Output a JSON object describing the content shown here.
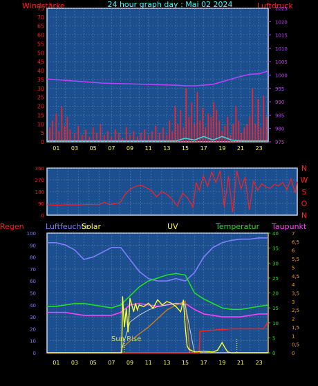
{
  "colors": {
    "bg": "#000000",
    "plot": "#1c4f8f",
    "grid": "#6f8fb8",
    "frame": "#c8d6ea",
    "wind": "#ff2020",
    "gust": "#ff2020",
    "wind_low": "#30e0e0",
    "pressure": "#c040ff",
    "direction": "#ff2020",
    "rain": "#ff2020",
    "humidity": "#8080ff",
    "solar": "#ffff30",
    "uv": "#d0d0d0",
    "temperature": "#20e020",
    "dewpoint": "#ff40ff",
    "solar_fill": "#c08020",
    "title": "#40ffff",
    "axis_x": "#ffff40"
  },
  "chart_data": [
    {
      "type": "line",
      "title": "24 hour graph day : Mai 02 2024",
      "left_label": "Windstärke",
      "right_label": "Luftdruck",
      "x_hours": [
        0,
        24
      ],
      "x_tick_labels": [
        "01",
        "03",
        "05",
        "07",
        "09",
        "11",
        "13",
        "15",
        "17",
        "19",
        "21",
        "23"
      ],
      "left_ticks": [
        "0",
        "5",
        "10",
        "15",
        "20",
        "25",
        "30",
        "35",
        "40",
        "45",
        "50",
        "55",
        "60",
        "65",
        "70",
        "75"
      ],
      "left_ylim": [
        0,
        75
      ],
      "right_ticks": [
        "975",
        "980",
        "985",
        "990",
        "995",
        "1000",
        "1005",
        "1010",
        "1015",
        "1020",
        "1025"
      ],
      "right_ylim": [
        975,
        1025
      ],
      "series": [
        {
          "key": "pressure",
          "axis": "right",
          "hours": [
            0,
            2,
            4,
            6,
            8,
            10,
            12,
            14,
            15,
            16,
            17,
            18,
            19,
            20,
            21,
            22,
            23,
            24
          ],
          "values": [
            998.5,
            998,
            997.5,
            997,
            996.8,
            996.6,
            996.4,
            996.2,
            996,
            996,
            996.2,
            996.5,
            997.5,
            998.5,
            999.5,
            1000.3,
            1000.5,
            1001.5
          ]
        },
        {
          "key": "gust",
          "axis": "left",
          "type": "bar",
          "hours": [
            0.3,
            0.6,
            1.0,
            1.3,
            1.6,
            1.9,
            2.2,
            2.5,
            3.0,
            3.4,
            3.8,
            4.2,
            4.6,
            5.0,
            5.4,
            5.8,
            6.2,
            6.6,
            7.0,
            7.4,
            7.8,
            8.2,
            8.6,
            9.0,
            9.4,
            9.8,
            10.2,
            10.6,
            11.0,
            11.4,
            11.8,
            12.2,
            12.6,
            13.0,
            13.3,
            13.6,
            13.9,
            14.2,
            14.5,
            14.8,
            15.1,
            15.4,
            15.7,
            16.0,
            16.3,
            16.6,
            16.9,
            17.2,
            17.5,
            17.8,
            18.1,
            18.4,
            18.7,
            19.0,
            19.3,
            19.6,
            19.9,
            20.2,
            20.5,
            20.8,
            21.1,
            21.4,
            21.7,
            22.0,
            22.3,
            22.6,
            22.9,
            23.2,
            23.5,
            23.8
          ],
          "values": [
            8,
            12,
            16,
            6,
            20,
            9,
            14,
            7,
            5,
            9,
            4,
            7,
            3,
            8,
            5,
            10,
            4,
            6,
            3,
            7,
            5,
            2,
            8,
            4,
            6,
            3,
            5,
            7,
            4,
            6,
            9,
            5,
            8,
            4,
            12,
            6,
            20,
            10,
            18,
            8,
            30,
            14,
            22,
            10,
            28,
            12,
            19,
            8,
            16,
            14,
            22,
            18,
            12,
            6,
            9,
            14,
            4,
            10,
            20,
            12,
            5,
            8,
            10,
            14,
            30,
            10,
            24,
            8,
            26,
            14
          ]
        },
        {
          "key": "wind_low",
          "axis": "left",
          "hours": [
            0,
            14,
            15,
            16,
            17,
            18,
            19,
            20,
            21,
            24
          ],
          "values": [
            0.5,
            0.5,
            2,
            1,
            3,
            1,
            3,
            1,
            0.5,
            0.5
          ]
        }
      ]
    },
    {
      "type": "line",
      "title": "",
      "right_label_letters": [
        "N",
        "W",
        "S",
        "O",
        "N"
      ],
      "left_ticks": [
        "0",
        "90",
        "180",
        "270",
        "360"
      ],
      "left_ylim": [
        0,
        360
      ],
      "series": [
        {
          "key": "direction",
          "hours": [
            0,
            1,
            2,
            3,
            4,
            5,
            5.5,
            6,
            7,
            7.5,
            8,
            8.5,
            9,
            9.5,
            10,
            10.5,
            11,
            11.5,
            12,
            12.5,
            13,
            13.5,
            14,
            14.3,
            14.6,
            15,
            15.4,
            15.8,
            16.2,
            16.6,
            17,
            17.4,
            17.8,
            18.2,
            18.6,
            19,
            19.4,
            19.8,
            20.2,
            20.6,
            21,
            21.4,
            21.8,
            22.2,
            22.6,
            23,
            23.4,
            23.8,
            24
          ],
          "values": [
            80,
            75,
            80,
            78,
            82,
            80,
            100,
            80,
            95,
            160,
            200,
            220,
            230,
            210,
            190,
            140,
            180,
            160,
            120,
            70,
            170,
            130,
            60,
            250,
            190,
            300,
            220,
            330,
            250,
            340,
            60,
            300,
            20,
            340,
            200,
            290,
            40,
            260,
            190,
            240,
            215,
            205,
            235,
            225,
            250,
            195,
            280,
            170,
            255
          ]
        }
      ]
    },
    {
      "type": "line",
      "labels": {
        "rain": "Regen",
        "humidity": "Luftfeuchte",
        "solar": "Solar",
        "uv": "UV",
        "temperature": "Temperatur",
        "dewpoint": "Taupunkt"
      },
      "annotation": "Sun Rise",
      "left_ticks": [
        "0",
        "10",
        "20",
        "30",
        "40",
        "50",
        "60",
        "70",
        "80",
        "90",
        "100"
      ],
      "left_ylim": [
        0,
        100
      ],
      "temp_ticks": [
        "0",
        "5",
        "10",
        "15",
        "20",
        "25",
        "30",
        "35",
        "40"
      ],
      "temp_ylim": [
        0,
        40
      ],
      "uv_ticks": [
        "0",
        "0,5",
        "1",
        "1,5",
        "2",
        "2,5",
        "3",
        "3,5",
        "4",
        "4,5",
        "5",
        "5,5",
        "6",
        "6,5",
        "7"
      ],
      "uv_ylim": [
        0,
        7
      ],
      "series": [
        {
          "key": "humidity",
          "axis": "left",
          "hours": [
            0,
            1,
            2,
            3,
            4,
            5,
            6,
            7,
            8,
            9,
            10,
            11,
            12,
            13,
            14,
            15,
            16,
            17,
            18,
            19,
            20,
            21,
            22,
            23,
            24
          ],
          "values": [
            92,
            92,
            90,
            86,
            78,
            80,
            84,
            88,
            88,
            78,
            68,
            62,
            60,
            60,
            62,
            60,
            67,
            80,
            88,
            92,
            94,
            95,
            95,
            96,
            96
          ]
        },
        {
          "key": "temperature",
          "axis": "temp",
          "hours": [
            0,
            1,
            2,
            3,
            4,
            5,
            6,
            7,
            8,
            9,
            10,
            11,
            12,
            13,
            14,
            15,
            16,
            17,
            18,
            19,
            20,
            21,
            22,
            23,
            24
          ],
          "values": [
            15.5,
            15.5,
            16,
            16.5,
            16.5,
            16,
            15.5,
            15,
            16,
            19,
            22,
            24,
            25,
            26,
            26.5,
            26,
            20,
            18,
            16.5,
            15,
            14.5,
            14.5,
            15,
            15.5,
            16
          ]
        },
        {
          "key": "dewpoint",
          "axis": "temp",
          "hours": [
            0,
            1,
            2,
            3,
            4,
            5,
            6,
            7,
            8,
            9,
            10,
            11,
            12,
            13,
            14,
            15,
            16,
            17,
            18,
            19,
            20,
            21,
            22,
            23,
            24
          ],
          "values": [
            13.5,
            13.5,
            13.5,
            13,
            12.5,
            12.5,
            12.5,
            12.5,
            13.5,
            16,
            16.5,
            16,
            15.5,
            16,
            16.5,
            16.5,
            14.5,
            13,
            12.5,
            12,
            12,
            12,
            12.5,
            13,
            13
          ]
        },
        {
          "key": "solar",
          "axis": "uv",
          "hours": [
            0,
            7.5,
            8.1,
            8.2,
            8.4,
            8.6,
            8.8,
            9.0,
            9.2,
            9.4,
            9.6,
            9.8,
            10,
            10.5,
            11,
            11.5,
            12,
            12.5,
            13,
            13.5,
            14,
            14.5,
            14.8,
            15.0,
            15.2,
            15.4,
            15.8,
            16.2,
            17,
            18,
            18.5,
            19,
            19.3,
            19.6,
            20,
            21,
            24
          ],
          "values": [
            0,
            0,
            0,
            3.3,
            1.5,
            2.6,
            1.2,
            3.2,
            2.8,
            2.4,
            2.9,
            2.5,
            2.8,
            2.7,
            2.9,
            2.6,
            3.1,
            2.8,
            3.0,
            2.9,
            2.7,
            2.4,
            3.1,
            1.5,
            0.4,
            0.2,
            0.1,
            0.05,
            0.1,
            0.05,
            0.15,
            0.6,
            0.3,
            0.05,
            0,
            0,
            0
          ]
        },
        {
          "key": "uv",
          "axis": "uv",
          "hours": [
            8,
            9,
            10,
            11,
            12,
            13,
            14,
            15,
            16
          ],
          "values": [
            0,
            1.8,
            2.2,
            2.5,
            2.7,
            2.8,
            2.9,
            2.8,
            0
          ]
        },
        {
          "key": "solar_fill",
          "axis": "uv",
          "hours": [
            8.2,
            9,
            10,
            11,
            12,
            13,
            14,
            15,
            15.5
          ],
          "values": [
            0.3,
            0.7,
            1.1,
            1.5,
            2.0,
            2.5,
            2.8,
            3.0,
            0
          ]
        },
        {
          "key": "rain",
          "axis": "left",
          "hours": [
            0,
            16.5,
            16.6,
            20,
            22.5,
            23.5,
            23.9,
            24
          ],
          "values": [
            0,
            0,
            18,
            20,
            20,
            20,
            25,
            25
          ]
        }
      ]
    }
  ]
}
